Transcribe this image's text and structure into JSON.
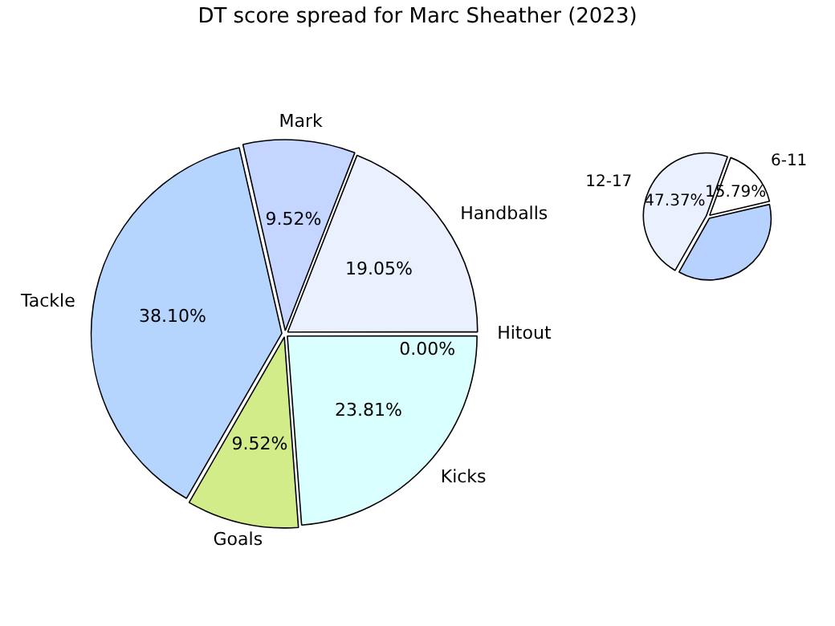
{
  "chart_data": [
    {
      "type": "pie",
      "categories": [
        "6-11",
        null,
        "12-17"
      ],
      "values": [
        15.79,
        36.84,
        47.37
      ],
      "colors": [
        "#ffffff",
        "#b8d2ff",
        "#eaf0fe"
      ],
      "value_labels": [
        "15.79%",
        null,
        "47.37%"
      ],
      "legend": false
    },
    {
      "type": "pie",
      "title": "DT score spread for Marc Sheather (2023)",
      "categories": [
        "Handballs",
        "Hitout",
        "Kicks",
        "Goals",
        "Tackle",
        "Mark"
      ],
      "values": [
        19.05,
        0.0,
        23.81,
        9.52,
        38.1,
        9.52
      ],
      "colors": [
        "#eaf0fe",
        "#e0e0ff",
        "#d9ffff",
        "#d2ec8a",
        "#b5d5ff",
        "#c4d6ff"
      ],
      "value_labels": [
        "19.05%",
        "0.00%",
        "23.81%",
        "9.52%",
        "38.10%",
        "9.52%"
      ],
      "legend": false
    }
  ]
}
